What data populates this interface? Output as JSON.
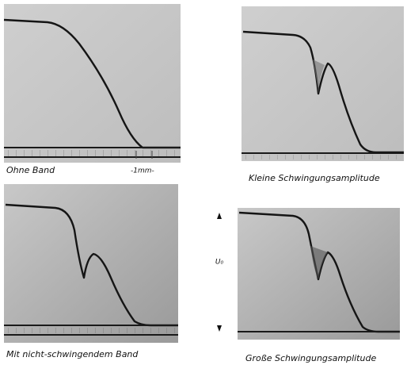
{
  "panels": [
    {
      "caption": "Ohne Band",
      "scale_label": "-1mm-"
    },
    {
      "caption": "Kleine Schwingungsamplitude"
    },
    {
      "caption": "Mit nicht-schwingendem Band"
    },
    {
      "caption": "Große Schwingungsamplitude"
    }
  ],
  "axis_label": "U₀"
}
